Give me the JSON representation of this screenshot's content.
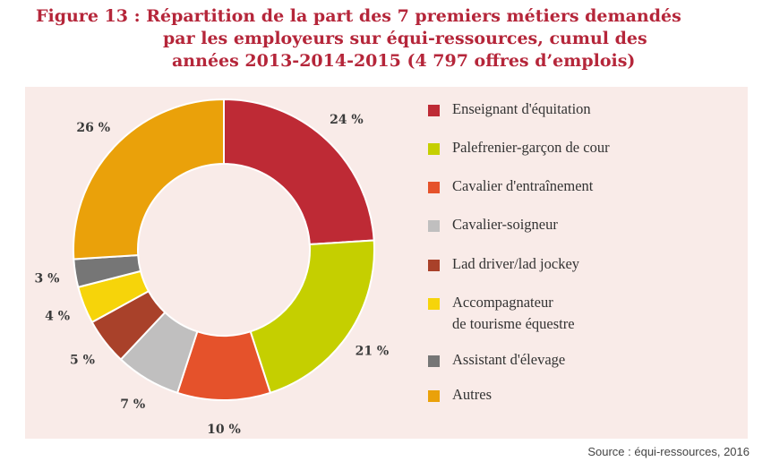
{
  "title": {
    "line1": "Figure 13 :  Répartition de la part des 7 premiers métiers demandés",
    "line2": "par les employeurs sur équi-ressources, cumul des",
    "line3": "années 2013-2014-2015 (4 797 offres d’emplois)"
  },
  "source": "Source : équi-ressources, 2016",
  "chart_data": {
    "type": "pie",
    "variant": "donut",
    "categories": [
      "Enseignant d'équitation",
      "Palefrenier-garçon de cour",
      "Cavalier d'entraînement",
      "Cavalier-soigneur",
      "Lad driver/lad jockey",
      "Accompagnateur\nde tourisme équestre",
      "Assistant d'élevage",
      "Autres"
    ],
    "values": [
      24,
      21,
      10,
      7,
      5,
      4,
      3,
      26
    ],
    "labels": [
      "24 %",
      "21 %",
      "10 %",
      "7 %",
      "5 %",
      "4 %",
      "3 %",
      "26 %"
    ],
    "colors": [
      "#be2a35",
      "#c5cf00",
      "#e5522b",
      "#c0bfbf",
      "#a9412a",
      "#f6d40a",
      "#767676",
      "#eaa10a"
    ],
    "unit": "%",
    "legend_position": "right"
  }
}
